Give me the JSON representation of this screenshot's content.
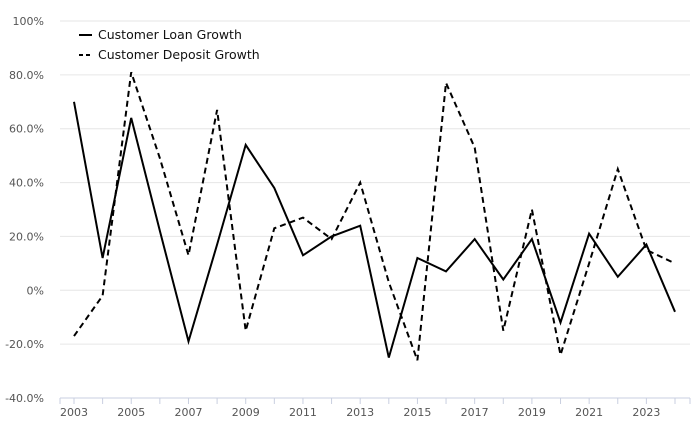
{
  "chart_data": {
    "type": "line",
    "title": "",
    "xlabel": "",
    "ylabel": "",
    "x": [
      "2003",
      "2004",
      "2005",
      "2006",
      "2007",
      "2008",
      "2009",
      "2010",
      "2011",
      "2012",
      "2013",
      "2014",
      "2015",
      "2016",
      "2017",
      "2018",
      "2019",
      "2020",
      "2021",
      "2022",
      "2023",
      "2024"
    ],
    "x_tick_labels": [
      "2003",
      "2005",
      "2007",
      "2009",
      "2011",
      "2013",
      "2015",
      "2017",
      "2019",
      "2021",
      "2023"
    ],
    "y_tick_labels": [
      "100%",
      "80.0%",
      "60.0%",
      "40.0%",
      "20.0%",
      "0%",
      "-20.0%",
      "-40.0%"
    ],
    "ylim": [
      -40,
      100
    ],
    "grid": "horizontal",
    "legend_position": "top-left",
    "series": [
      {
        "name": "Customer Loan Growth",
        "style": "solid",
        "color": "#000000",
        "values": [
          70,
          12,
          64,
          22,
          -19,
          17,
          54,
          38,
          13,
          20,
          24,
          -25,
          12,
          7,
          19,
          4,
          19,
          -12,
          21,
          5,
          17,
          -8
        ]
      },
      {
        "name": "Customer Deposit Growth",
        "style": "dashed",
        "color": "#000000",
        "values": [
          -17,
          -2,
          81,
          49,
          13,
          67,
          -15,
          23,
          27,
          19,
          40,
          3,
          -26,
          77,
          53,
          -15,
          30,
          -24,
          10,
          45,
          15,
          10
        ]
      }
    ]
  }
}
